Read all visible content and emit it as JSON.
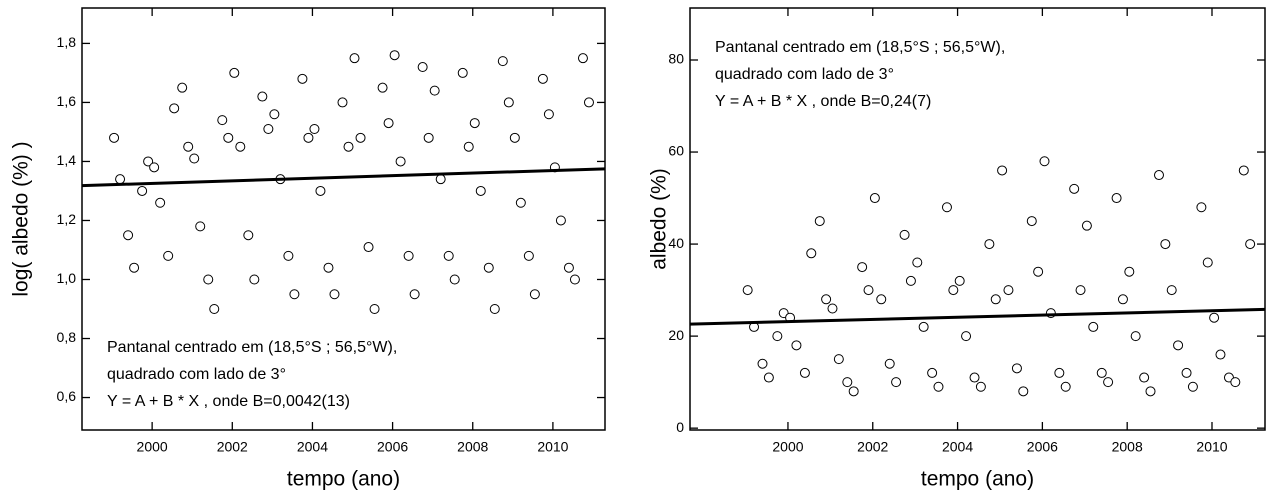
{
  "chart_data": [
    {
      "type": "scatter",
      "x_label": "tempo (ano)",
      "y_label": "log( albedo (%) )",
      "annotation": [
        "Pantanal centrado em (18,5°S ; 56,5°W),",
        "quadrado com lado de 3°",
        "Y = A + B * X , onde B=0,0042(13)"
      ],
      "annotation_position": "bottom-left",
      "xlim": [
        1998.25,
        2011.3
      ],
      "ylim": [
        0.49,
        1.92
      ],
      "xticks": [
        2000,
        2002,
        2004,
        2006,
        2008,
        2010
      ],
      "yticks": [
        {
          "value": 0.6,
          "label": "0,6"
        },
        {
          "value": 0.8,
          "label": "0,8"
        },
        {
          "value": 1.0,
          "label": "1,0"
        },
        {
          "value": 1.2,
          "label": "1,2"
        },
        {
          "value": 1.4,
          "label": "1,4"
        },
        {
          "value": 1.6,
          "label": "1,6"
        },
        {
          "value": 1.8,
          "label": "1,8"
        }
      ],
      "marker_color": "#000000",
      "x": [
        1999.05,
        1999.2,
        1999.4,
        1999.55,
        1999.75,
        1999.9,
        2000.05,
        2000.2,
        2000.4,
        2000.55,
        2000.75,
        2000.9,
        2001.05,
        2001.2,
        2001.4,
        2001.55,
        2001.75,
        2001.9,
        2002.05,
        2002.2,
        2002.4,
        2002.55,
        2002.75,
        2002.9,
        2003.05,
        2003.2,
        2003.4,
        2003.55,
        2003.75,
        2003.9,
        2004.05,
        2004.2,
        2004.4,
        2004.55,
        2004.75,
        2004.9,
        2005.05,
        2005.2,
        2005.4,
        2005.55,
        2005.75,
        2005.9,
        2006.05,
        2006.2,
        2006.4,
        2006.55,
        2006.75,
        2006.9,
        2007.05,
        2007.2,
        2007.4,
        2007.55,
        2007.75,
        2007.9,
        2008.05,
        2008.2,
        2008.4,
        2008.55,
        2008.75,
        2008.9,
        2009.05,
        2009.2,
        2009.4,
        2009.55,
        2009.75,
        2009.9,
        2010.05,
        2010.2,
        2010.4,
        2010.55,
        2010.75,
        2010.9
      ],
      "values": [
        1.48,
        1.34,
        1.15,
        1.04,
        1.3,
        1.4,
        1.38,
        1.26,
        1.08,
        1.58,
        1.65,
        1.45,
        1.41,
        1.18,
        1.0,
        0.9,
        1.54,
        1.48,
        1.7,
        1.45,
        1.15,
        1.0,
        1.62,
        1.51,
        1.56,
        1.34,
        1.08,
        0.95,
        1.68,
        1.48,
        1.51,
        1.3,
        1.04,
        0.95,
        1.6,
        1.45,
        1.75,
        1.48,
        1.11,
        0.9,
        1.65,
        1.53,
        1.76,
        1.4,
        1.08,
        0.95,
        1.72,
        1.48,
        1.64,
        1.34,
        1.08,
        1.0,
        1.7,
        1.45,
        1.53,
        1.3,
        1.04,
        0.9,
        1.74,
        1.6,
        1.48,
        1.26,
        1.08,
        0.95,
        1.68,
        1.56,
        1.38,
        1.2,
        1.04,
        1.0,
        1.75,
        1.6
      ],
      "fit": {
        "x": [
          1998.25,
          2011.3
        ],
        "values": [
          1.318,
          1.375
        ],
        "color": "#000000"
      }
    },
    {
      "type": "scatter",
      "x_label": "tempo (ano)",
      "y_label": "albedo (%)",
      "annotation": [
        "Pantanal centrado em (18,5°S ; 56,5°W),",
        "quadrado com lado de 3°",
        "Y = A + B * X , onde B=0,24(7)"
      ],
      "annotation_position": "top-left",
      "xlim": [
        1997.69,
        2011.25
      ],
      "ylim": [
        -0.4,
        91.3
      ],
      "xticks": [
        2000,
        2002,
        2004,
        2006,
        2008,
        2010
      ],
      "yticks": [
        0,
        20,
        40,
        60,
        80
      ],
      "marker_color": "#000000",
      "x": [
        1999.05,
        1999.2,
        1999.4,
        1999.55,
        1999.75,
        1999.9,
        2000.05,
        2000.2,
        2000.4,
        2000.55,
        2000.75,
        2000.9,
        2001.05,
        2001.2,
        2001.4,
        2001.55,
        2001.75,
        2001.9,
        2002.05,
        2002.2,
        2002.4,
        2002.55,
        2002.75,
        2002.9,
        2003.05,
        2003.2,
        2003.4,
        2003.55,
        2003.75,
        2003.9,
        2004.05,
        2004.2,
        2004.4,
        2004.55,
        2004.75,
        2004.9,
        2005.05,
        2005.2,
        2005.4,
        2005.55,
        2005.75,
        2005.9,
        2006.05,
        2006.2,
        2006.4,
        2006.55,
        2006.75,
        2006.9,
        2007.05,
        2007.2,
        2007.4,
        2007.55,
        2007.75,
        2007.9,
        2008.05,
        2008.2,
        2008.4,
        2008.55,
        2008.75,
        2008.9,
        2009.05,
        2009.2,
        2009.4,
        2009.55,
        2009.75,
        2009.9,
        2010.05,
        2010.2,
        2010.4,
        2010.55,
        2010.75,
        2010.9
      ],
      "values": [
        30,
        22,
        14,
        11,
        20,
        25,
        24,
        18,
        12,
        38,
        45,
        28,
        26,
        15,
        10,
        8,
        35,
        30,
        50,
        28,
        14,
        10,
        42,
        32,
        36,
        22,
        12,
        9,
        48,
        30,
        32,
        20,
        11,
        9,
        40,
        28,
        56,
        30,
        13,
        8,
        45,
        34,
        58,
        25,
        12,
        9,
        52,
        30,
        44,
        22,
        12,
        10,
        50,
        28,
        34,
        20,
        11,
        8,
        55,
        40,
        30,
        18,
        12,
        9,
        48,
        36,
        24,
        16,
        11,
        10,
        56,
        40
      ],
      "fit": {
        "x": [
          1997.69,
          2011.25
        ],
        "values": [
          22.6,
          25.8
        ],
        "color": "#000000"
      }
    }
  ]
}
